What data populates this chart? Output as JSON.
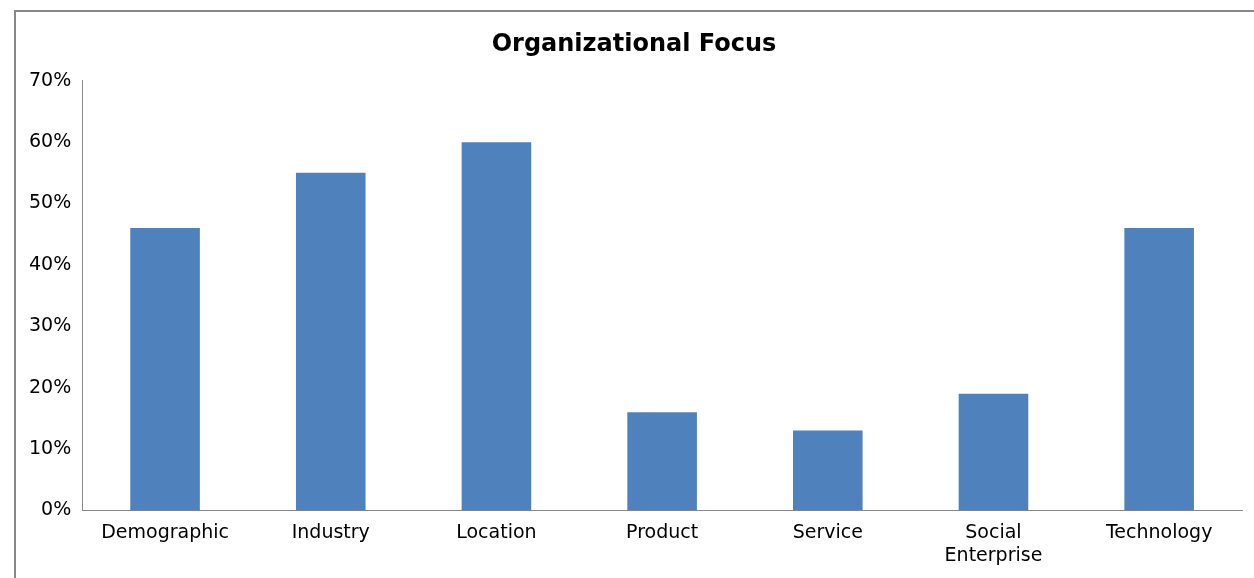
{
  "chart_data": {
    "type": "bar",
    "title": "Organizational Focus",
    "categories": [
      "Demographic",
      "Industry",
      "Location",
      "Product",
      "Service",
      "Social Enterprise",
      "Technology"
    ],
    "values": [
      46,
      55,
      60,
      16,
      13,
      19,
      46
    ],
    "color": "#4f81bd",
    "ylim": [
      0,
      70
    ],
    "yticks": [
      {
        "value": 0,
        "label": "0%"
      },
      {
        "value": 10,
        "label": "10%"
      },
      {
        "value": 20,
        "label": "20%"
      },
      {
        "value": 30,
        "label": "30%"
      },
      {
        "value": 40,
        "label": "40%"
      },
      {
        "value": 50,
        "label": "50%"
      },
      {
        "value": 60,
        "label": "60%"
      },
      {
        "value": 70,
        "label": "70%"
      }
    ],
    "grid": false,
    "legend": false
  }
}
